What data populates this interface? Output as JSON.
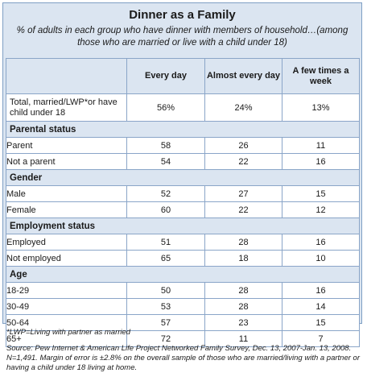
{
  "chart_data": {
    "type": "table",
    "title": "Dinner as a Family",
    "subtitle": "% of adults in each group who have dinner with members of household…(among those who are married or live with a child under 18)",
    "columns": [
      "Every day",
      "Almost every day",
      "A few times a week"
    ],
    "total": {
      "label": "Total, married/LWP*or have child under 18",
      "values": [
        "56%",
        "24%",
        "13%"
      ]
    },
    "sections": [
      {
        "name": "Parental status",
        "rows": [
          {
            "label": "Parent",
            "values": [
              58,
              26,
              11
            ]
          },
          {
            "label": "Not a parent",
            "values": [
              54,
              22,
              16
            ]
          }
        ]
      },
      {
        "name": "Gender",
        "rows": [
          {
            "label": "Male",
            "values": [
              52,
              27,
              15
            ]
          },
          {
            "label": "Female",
            "values": [
              60,
              22,
              12
            ]
          }
        ]
      },
      {
        "name": "Employment status",
        "rows": [
          {
            "label": "Employed",
            "values": [
              51,
              28,
              16
            ]
          },
          {
            "label": "Not employed",
            "values": [
              65,
              18,
              10
            ]
          }
        ]
      },
      {
        "name": "Age",
        "rows": [
          {
            "label": "18-29",
            "values": [
              50,
              28,
              16
            ]
          },
          {
            "label": "30-49",
            "values": [
              53,
              28,
              14
            ]
          },
          {
            "label": "50-64",
            "values": [
              57,
              23,
              15
            ]
          },
          {
            "label": "65+",
            "values": [
              72,
              11,
              7
            ]
          }
        ]
      }
    ],
    "footnote": "*LWP=Living with partner as married",
    "source": "Source:  Pew Internet & American Life Project Networked Family Survey, Dec. 13, 2007-Jan. 13, 2008. N=1,491. Margin of error is ±2.8% on the overall sample of those who are married/living with a partner or having a child under 18 living at home."
  },
  "colors": {
    "header_bg": "#dbe5f1",
    "border": "#8aa5c8",
    "frame": "#7f9fc4"
  }
}
